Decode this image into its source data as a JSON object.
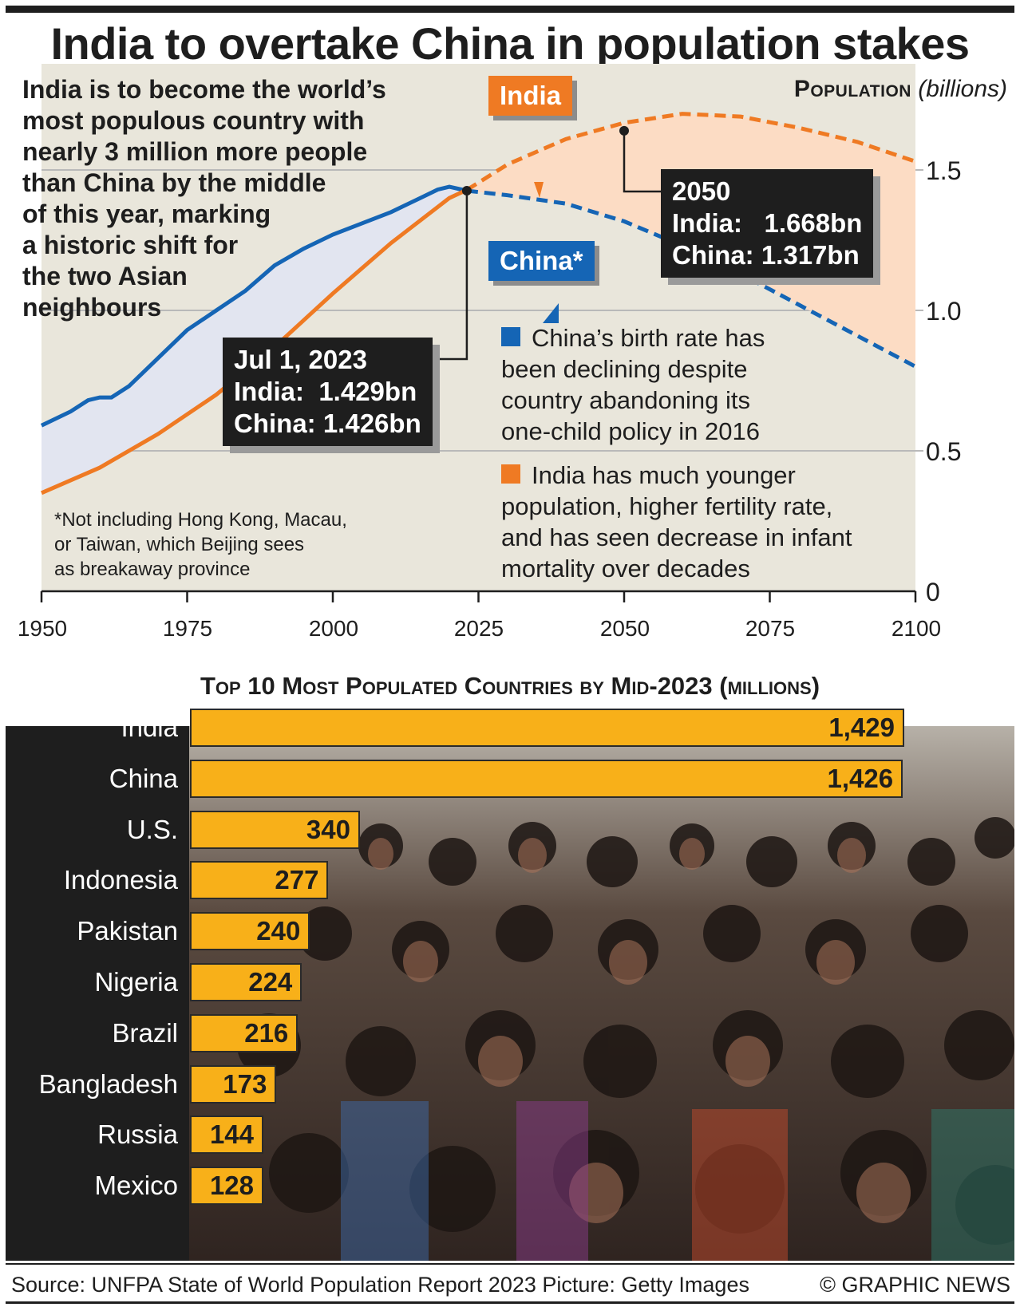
{
  "title": "India to overtake China in population stakes",
  "intro": "India is to become the world’s\nmost populous country with\nnearly 3 million more people\nthan China by the middle\nof this year, marking\na historic shift for\nthe two Asian\nneighbours",
  "axis_label": {
    "main": "Population",
    "unit": "(billions)"
  },
  "callouts": {
    "india": "India",
    "china": "China*"
  },
  "box_2023": "Jul 1, 2023\nIndia:  1.429bn\nChina: 1.426bn",
  "box_2050": "2050\nIndia:   1.668bn\nChina: 1.317bn",
  "notes": {
    "china": "China’s birth rate has\nbeen declining despite\ncountry abandoning its\none-child policy in 2016",
    "india": "India has much younger\npopulation, higher fertility rate,\nand has seen decrease in infant\nmortality over decades"
  },
  "footnote": "*Not including Hong Kong, Macau,\nor Taiwan, which Beijing sees\nas breakaway province",
  "bar_title": "Top 10 Most Populated Countries by Mid-2023 (millions)",
  "source": "Source: UNFPA State of World Population Report 2023  Picture: Getty Images",
  "credit": "© GRAPHIC NEWS",
  "colors": {
    "china": "#1565b5",
    "india": "#ef7a23",
    "bar": "#f8b019",
    "dark": "#1e1e1e",
    "bg": "#e9e6db",
    "china_fill": "#e2e5f0",
    "india_fill": "#fcdcc4"
  },
  "chart_data": [
    {
      "type": "line",
      "title": "Population (billions)",
      "xlabel": "",
      "ylabel": "Population (billions)",
      "x_ticks": [
        "1950",
        "1975",
        "2000",
        "2025",
        "2050",
        "2075",
        "2100"
      ],
      "y_ticks": [
        "0",
        "0.5",
        "1.0",
        "1.5"
      ],
      "xlim": [
        1950,
        2100
      ],
      "ylim": [
        0,
        1.75
      ],
      "projection_from": 2023,
      "series": [
        {
          "name": "China*",
          "x": [
            1950,
            1955,
            1958,
            1960,
            1962,
            1965,
            1970,
            1975,
            1980,
            1985,
            1990,
            1995,
            2000,
            2005,
            2010,
            2015,
            2018,
            2020,
            2023,
            2030,
            2040,
            2050,
            2060,
            2070,
            2080,
            2090,
            2100
          ],
          "values": [
            0.59,
            0.64,
            0.68,
            0.69,
            0.69,
            0.73,
            0.83,
            0.93,
            1.0,
            1.07,
            1.16,
            1.22,
            1.27,
            1.31,
            1.35,
            1.4,
            1.43,
            1.44,
            1.426,
            1.41,
            1.38,
            1.317,
            1.23,
            1.13,
            1.02,
            0.91,
            0.8
          ]
        },
        {
          "name": "India",
          "x": [
            1950,
            1960,
            1970,
            1980,
            1990,
            2000,
            2010,
            2020,
            2023,
            2030,
            2040,
            2050,
            2060,
            2070,
            2080,
            2090,
            2100
          ],
          "values": [
            0.35,
            0.44,
            0.56,
            0.7,
            0.87,
            1.06,
            1.24,
            1.4,
            1.429,
            1.52,
            1.61,
            1.668,
            1.7,
            1.69,
            1.65,
            1.6,
            1.53
          ]
        }
      ],
      "annotations": [
        {
          "x": 2023,
          "text": "Jul 1, 2023 India: 1.429bn China: 1.426bn"
        },
        {
          "x": 2050,
          "text": "2050 India: 1.668bn China: 1.317bn"
        }
      ]
    },
    {
      "type": "bar",
      "title": "Top 10 Most Populated Countries by Mid-2023 (millions)",
      "orientation": "horizontal",
      "categories": [
        "India",
        "China",
        "U.S.",
        "Indonesia",
        "Pakistan",
        "Nigeria",
        "Brazil",
        "Bangladesh",
        "Russia",
        "Mexico"
      ],
      "values": [
        1429,
        1426,
        340,
        277,
        240,
        224,
        216,
        173,
        144,
        128
      ],
      "labels": [
        "1,429",
        "1,426",
        "340",
        "277",
        "240",
        "224",
        "216",
        "173",
        "144",
        "128"
      ],
      "xlim": [
        0,
        1429
      ]
    }
  ]
}
